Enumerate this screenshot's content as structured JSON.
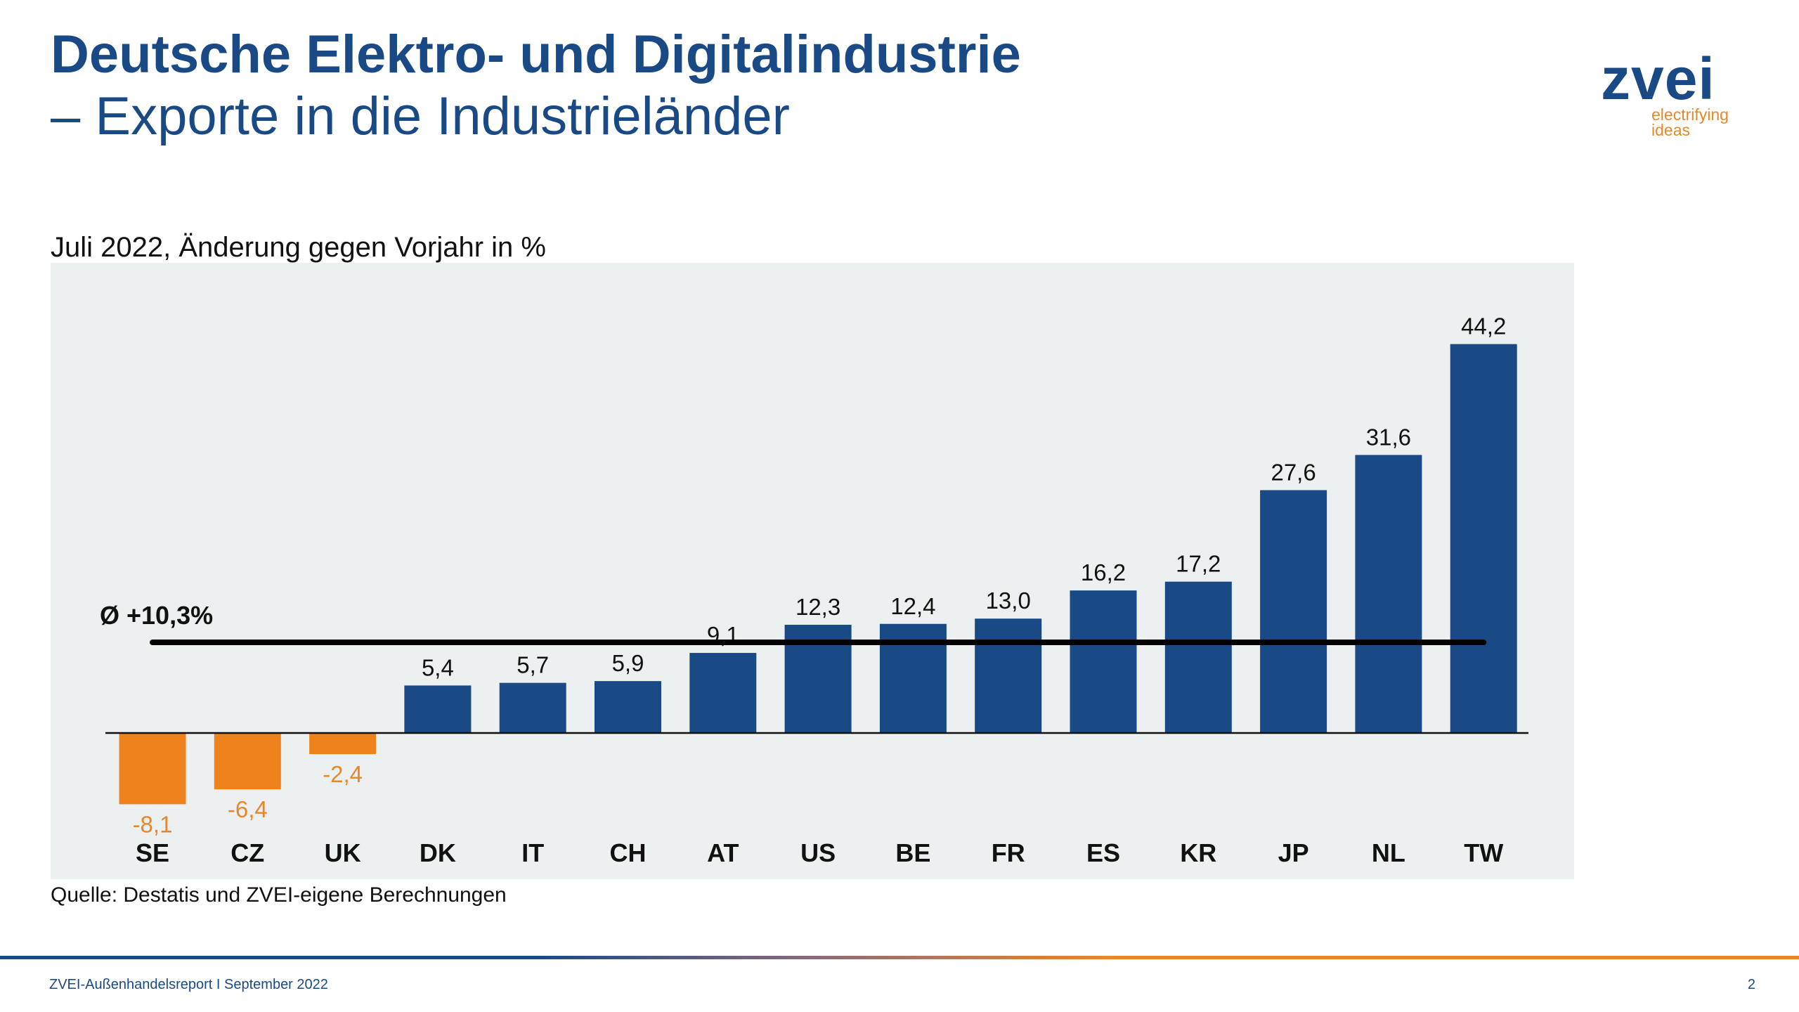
{
  "header": {
    "title": "Deutsche Elektro- und Digitalindustrie",
    "subtitle": "– Exporte in die Industrieländer"
  },
  "logo": {
    "name": "zvei",
    "tagline_1": "electrifying",
    "tagline_2": "ideas"
  },
  "chart_data": {
    "type": "bar",
    "title": "Juli 2022, Änderung gegen Vorjahr in %",
    "categories": [
      "SE",
      "CZ",
      "UK",
      "DK",
      "IT",
      "CH",
      "AT",
      "US",
      "BE",
      "FR",
      "ES",
      "KR",
      "JP",
      "NL",
      "TW"
    ],
    "values": [
      -8.1,
      -6.4,
      -2.4,
      5.4,
      5.7,
      5.9,
      9.1,
      12.3,
      12.4,
      13.0,
      16.2,
      17.2,
      27.6,
      31.6,
      44.2
    ],
    "data_labels": [
      "-8,1",
      "-6,4",
      "-2,4",
      "5,4",
      "5,7",
      "5,9",
      "9,1",
      "12,3",
      "12,4",
      "13,0",
      "16,2",
      "17,2",
      "27,6",
      "31,6",
      "44,2"
    ],
    "average": {
      "value": 10.3,
      "label": "Ø +10,3%"
    },
    "colors": {
      "positive": "#1a4a85",
      "negative": "#f0821e",
      "negative_label": "#e8872a",
      "background": "#edf0f0"
    },
    "grid": false,
    "legend": "none"
  },
  "source": "Quelle: Destatis und ZVEI-eigene Berechnungen",
  "footer": {
    "text": "ZVEI-Außenhandelsreport I September 2022",
    "page": "2"
  }
}
